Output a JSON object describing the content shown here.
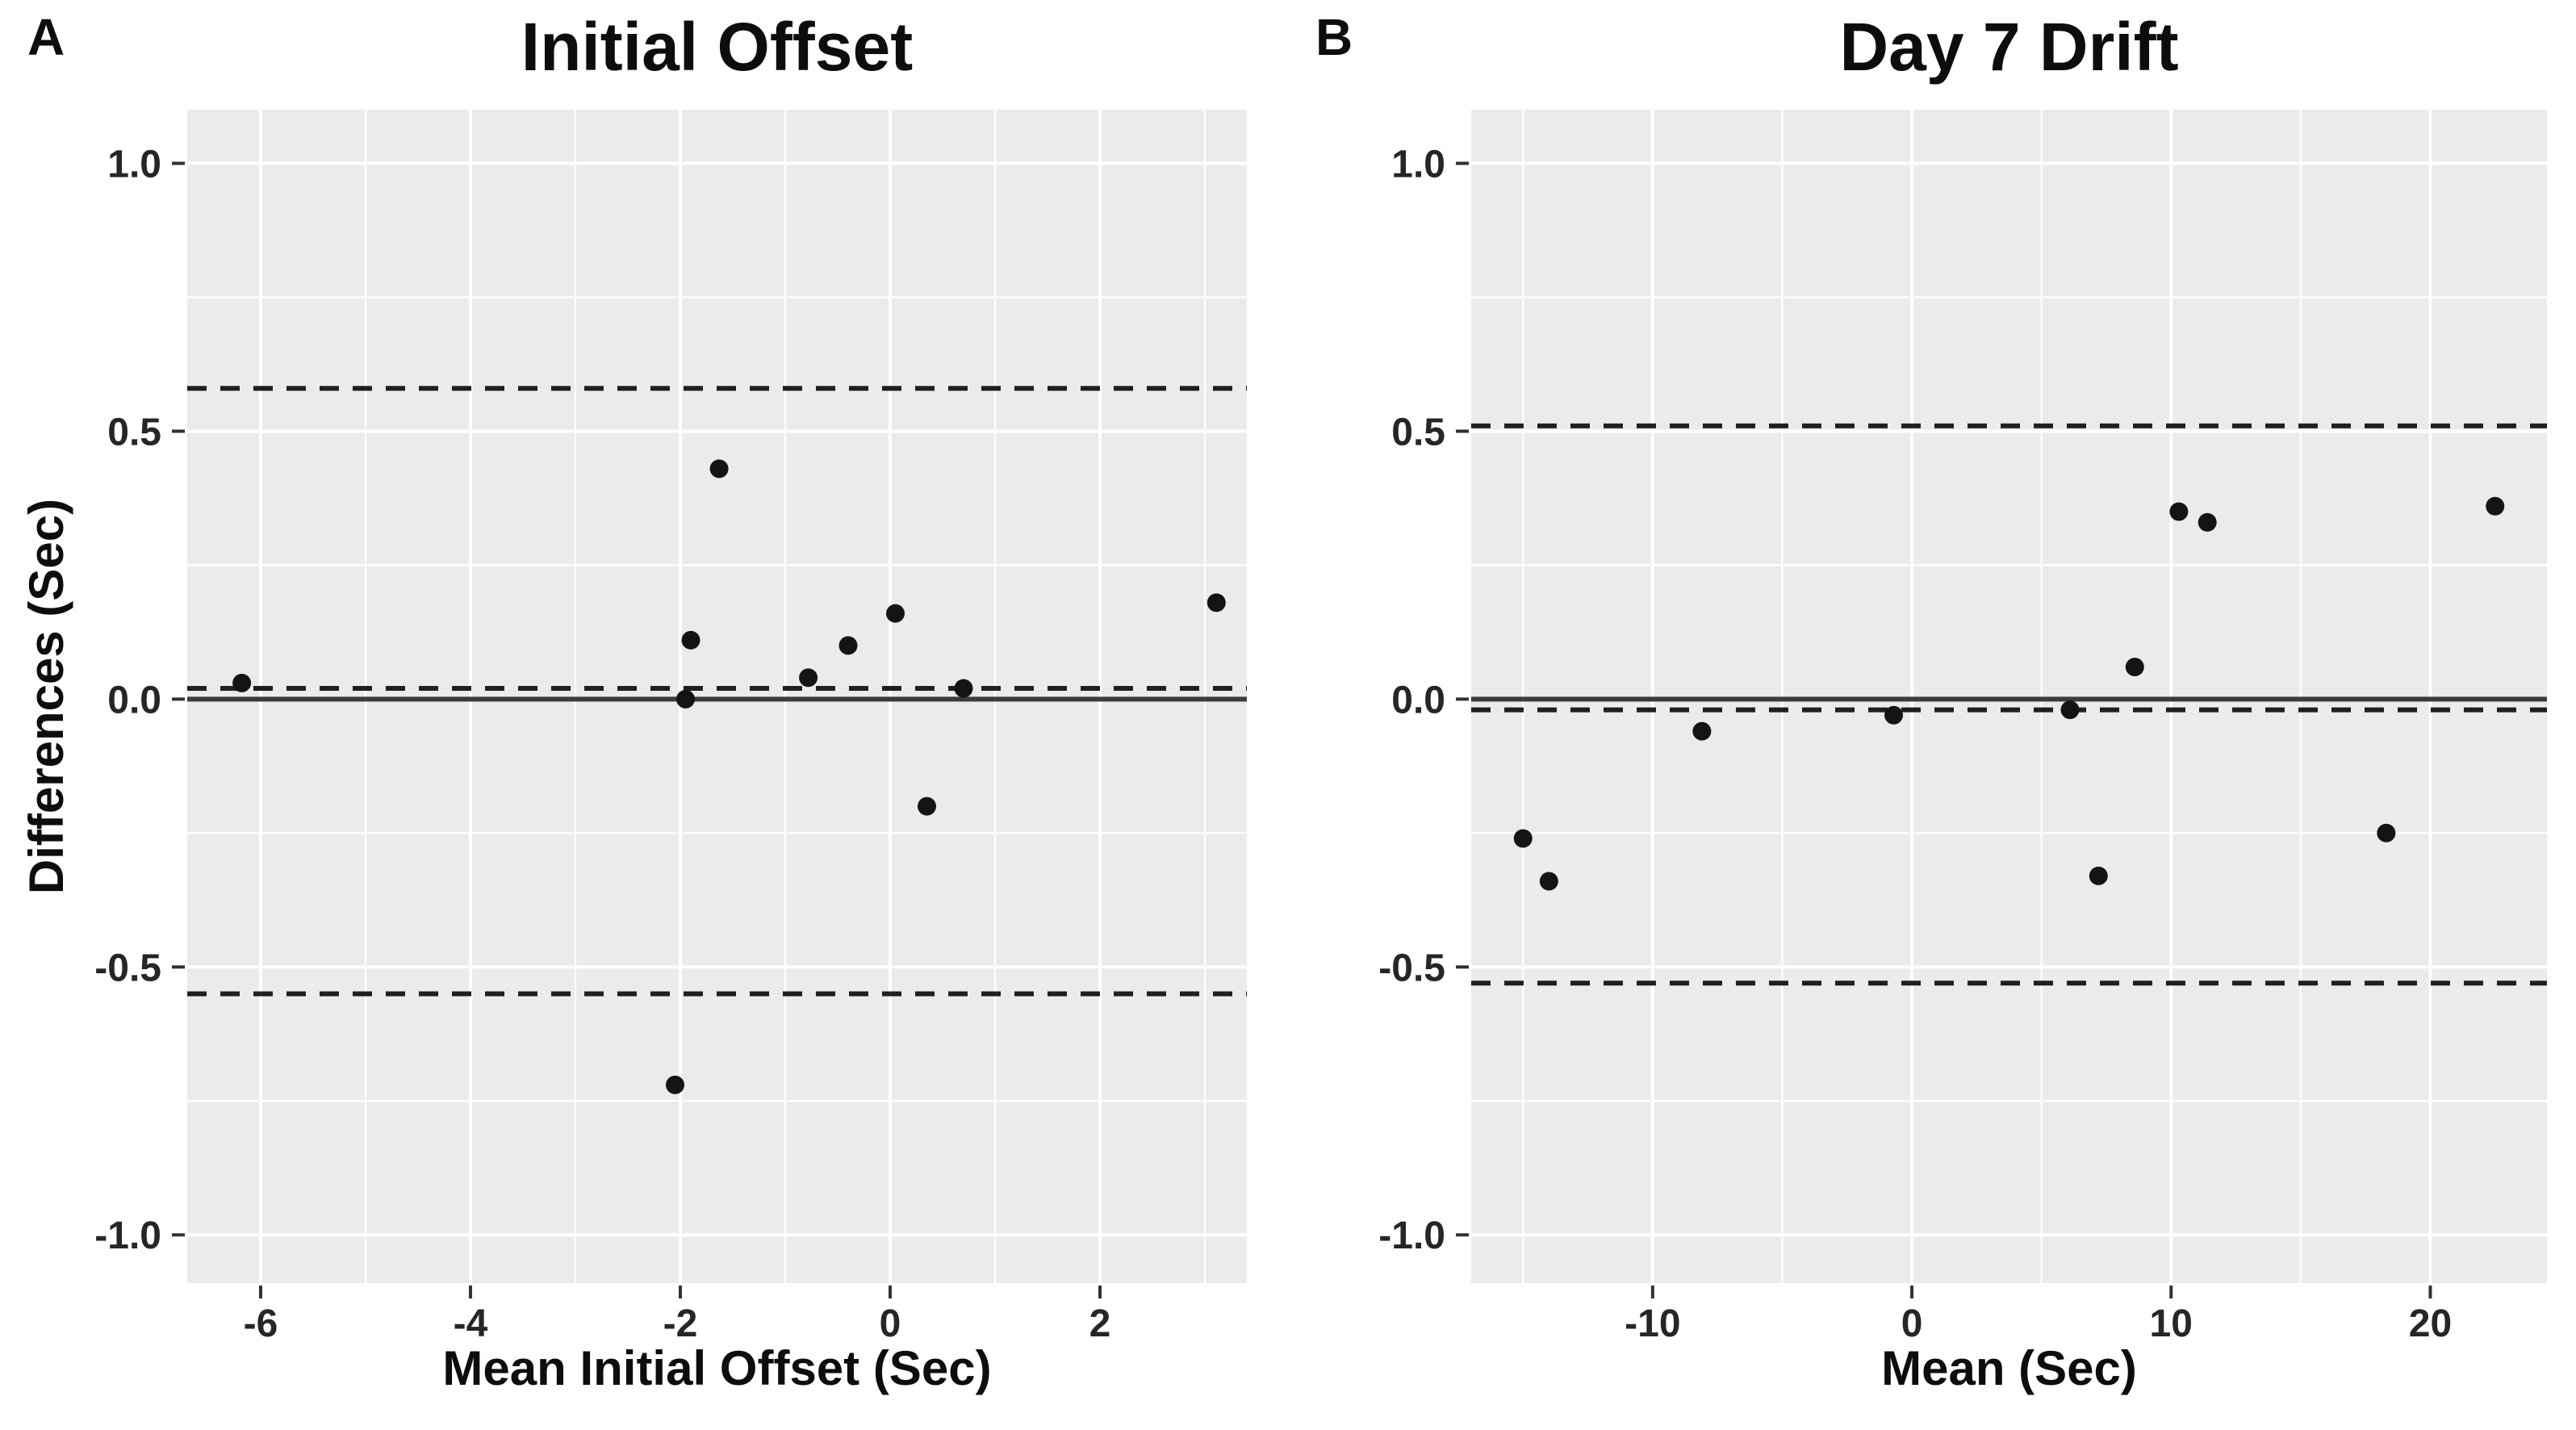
{
  "figure": {
    "background": "#ffffff",
    "panel_bg": "#ebebeb",
    "grid_color": "#ffffff",
    "tick_color": "#333333",
    "tick_text_color": "#262626",
    "text_color": "#0d0d0d",
    "point_color": "#141414",
    "solid_line_color": "#3c3c3c",
    "dashed_line_color": "#1f1f1f"
  },
  "chart_data": [
    {
      "type": "scatter",
      "panel_label": "A",
      "title": "Initial Offset",
      "xlabel": "Mean Initial Offset (Sec)",
      "ylabel": "Differences (Sec)",
      "legend": "none",
      "grid": true,
      "xlim": [
        -6.7,
        3.4
      ],
      "ylim": [
        -1.09,
        1.1
      ],
      "x_minor_step": 1,
      "y_minor_step": 0.25,
      "xticks": [
        {
          "v": -6,
          "label": "-6"
        },
        {
          "v": -4,
          "label": "-4"
        },
        {
          "v": -2,
          "label": "-2"
        },
        {
          "v": 0,
          "label": "0"
        },
        {
          "v": 2,
          "label": "2"
        }
      ],
      "yticks": [
        {
          "v": 1.0,
          "label": "1.0"
        },
        {
          "v": 0.5,
          "label": "0.5"
        },
        {
          "v": 0.0,
          "label": "0.0"
        },
        {
          "v": -0.5,
          "label": "-0.5"
        },
        {
          "v": -1.0,
          "label": "-1.0"
        }
      ],
      "hlines": {
        "zero": 0.0,
        "mean": 0.02,
        "upper_loa": 0.58,
        "lower_loa": -0.55
      },
      "points": [
        [
          -6.18,
          0.03
        ],
        [
          -2.05,
          -0.72
        ],
        [
          -1.95,
          0.0
        ],
        [
          -1.9,
          0.11
        ],
        [
          -1.63,
          0.43
        ],
        [
          -0.78,
          0.04
        ],
        [
          -0.4,
          0.1
        ],
        [
          0.05,
          0.16
        ],
        [
          0.35,
          -0.2
        ],
        [
          0.7,
          0.02
        ],
        [
          3.11,
          0.18
        ]
      ]
    },
    {
      "type": "scatter",
      "panel_label": "B",
      "title": "Day 7 Drift",
      "xlabel": "Mean (Sec)",
      "ylabel": "",
      "legend": "none",
      "grid": true,
      "xlim": [
        -17,
        24.5
      ],
      "ylim": [
        -1.09,
        1.1
      ],
      "x_minor_step": 5,
      "y_minor_step": 0.25,
      "xticks": [
        {
          "v": -10,
          "label": "-10"
        },
        {
          "v": 0,
          "label": "0"
        },
        {
          "v": 10,
          "label": "10"
        },
        {
          "v": 20,
          "label": "20"
        }
      ],
      "yticks": [
        {
          "v": 1.0,
          "label": "1.0"
        },
        {
          "v": 0.5,
          "label": "0.5"
        },
        {
          "v": 0.0,
          "label": "0.0"
        },
        {
          "v": -0.5,
          "label": "-0.5"
        },
        {
          "v": -1.0,
          "label": "-1.0"
        }
      ],
      "hlines": {
        "zero": 0.0,
        "mean": -0.02,
        "upper_loa": 0.51,
        "lower_loa": -0.53
      },
      "points": [
        [
          -15.0,
          -0.26
        ],
        [
          -14.0,
          -0.34
        ],
        [
          -8.1,
          -0.06
        ],
        [
          -0.7,
          -0.03
        ],
        [
          6.1,
          -0.02
        ],
        [
          7.2,
          -0.33
        ],
        [
          8.6,
          0.06
        ],
        [
          10.3,
          0.35
        ],
        [
          11.4,
          0.33
        ],
        [
          18.3,
          -0.25
        ],
        [
          22.5,
          0.36
        ]
      ]
    }
  ]
}
